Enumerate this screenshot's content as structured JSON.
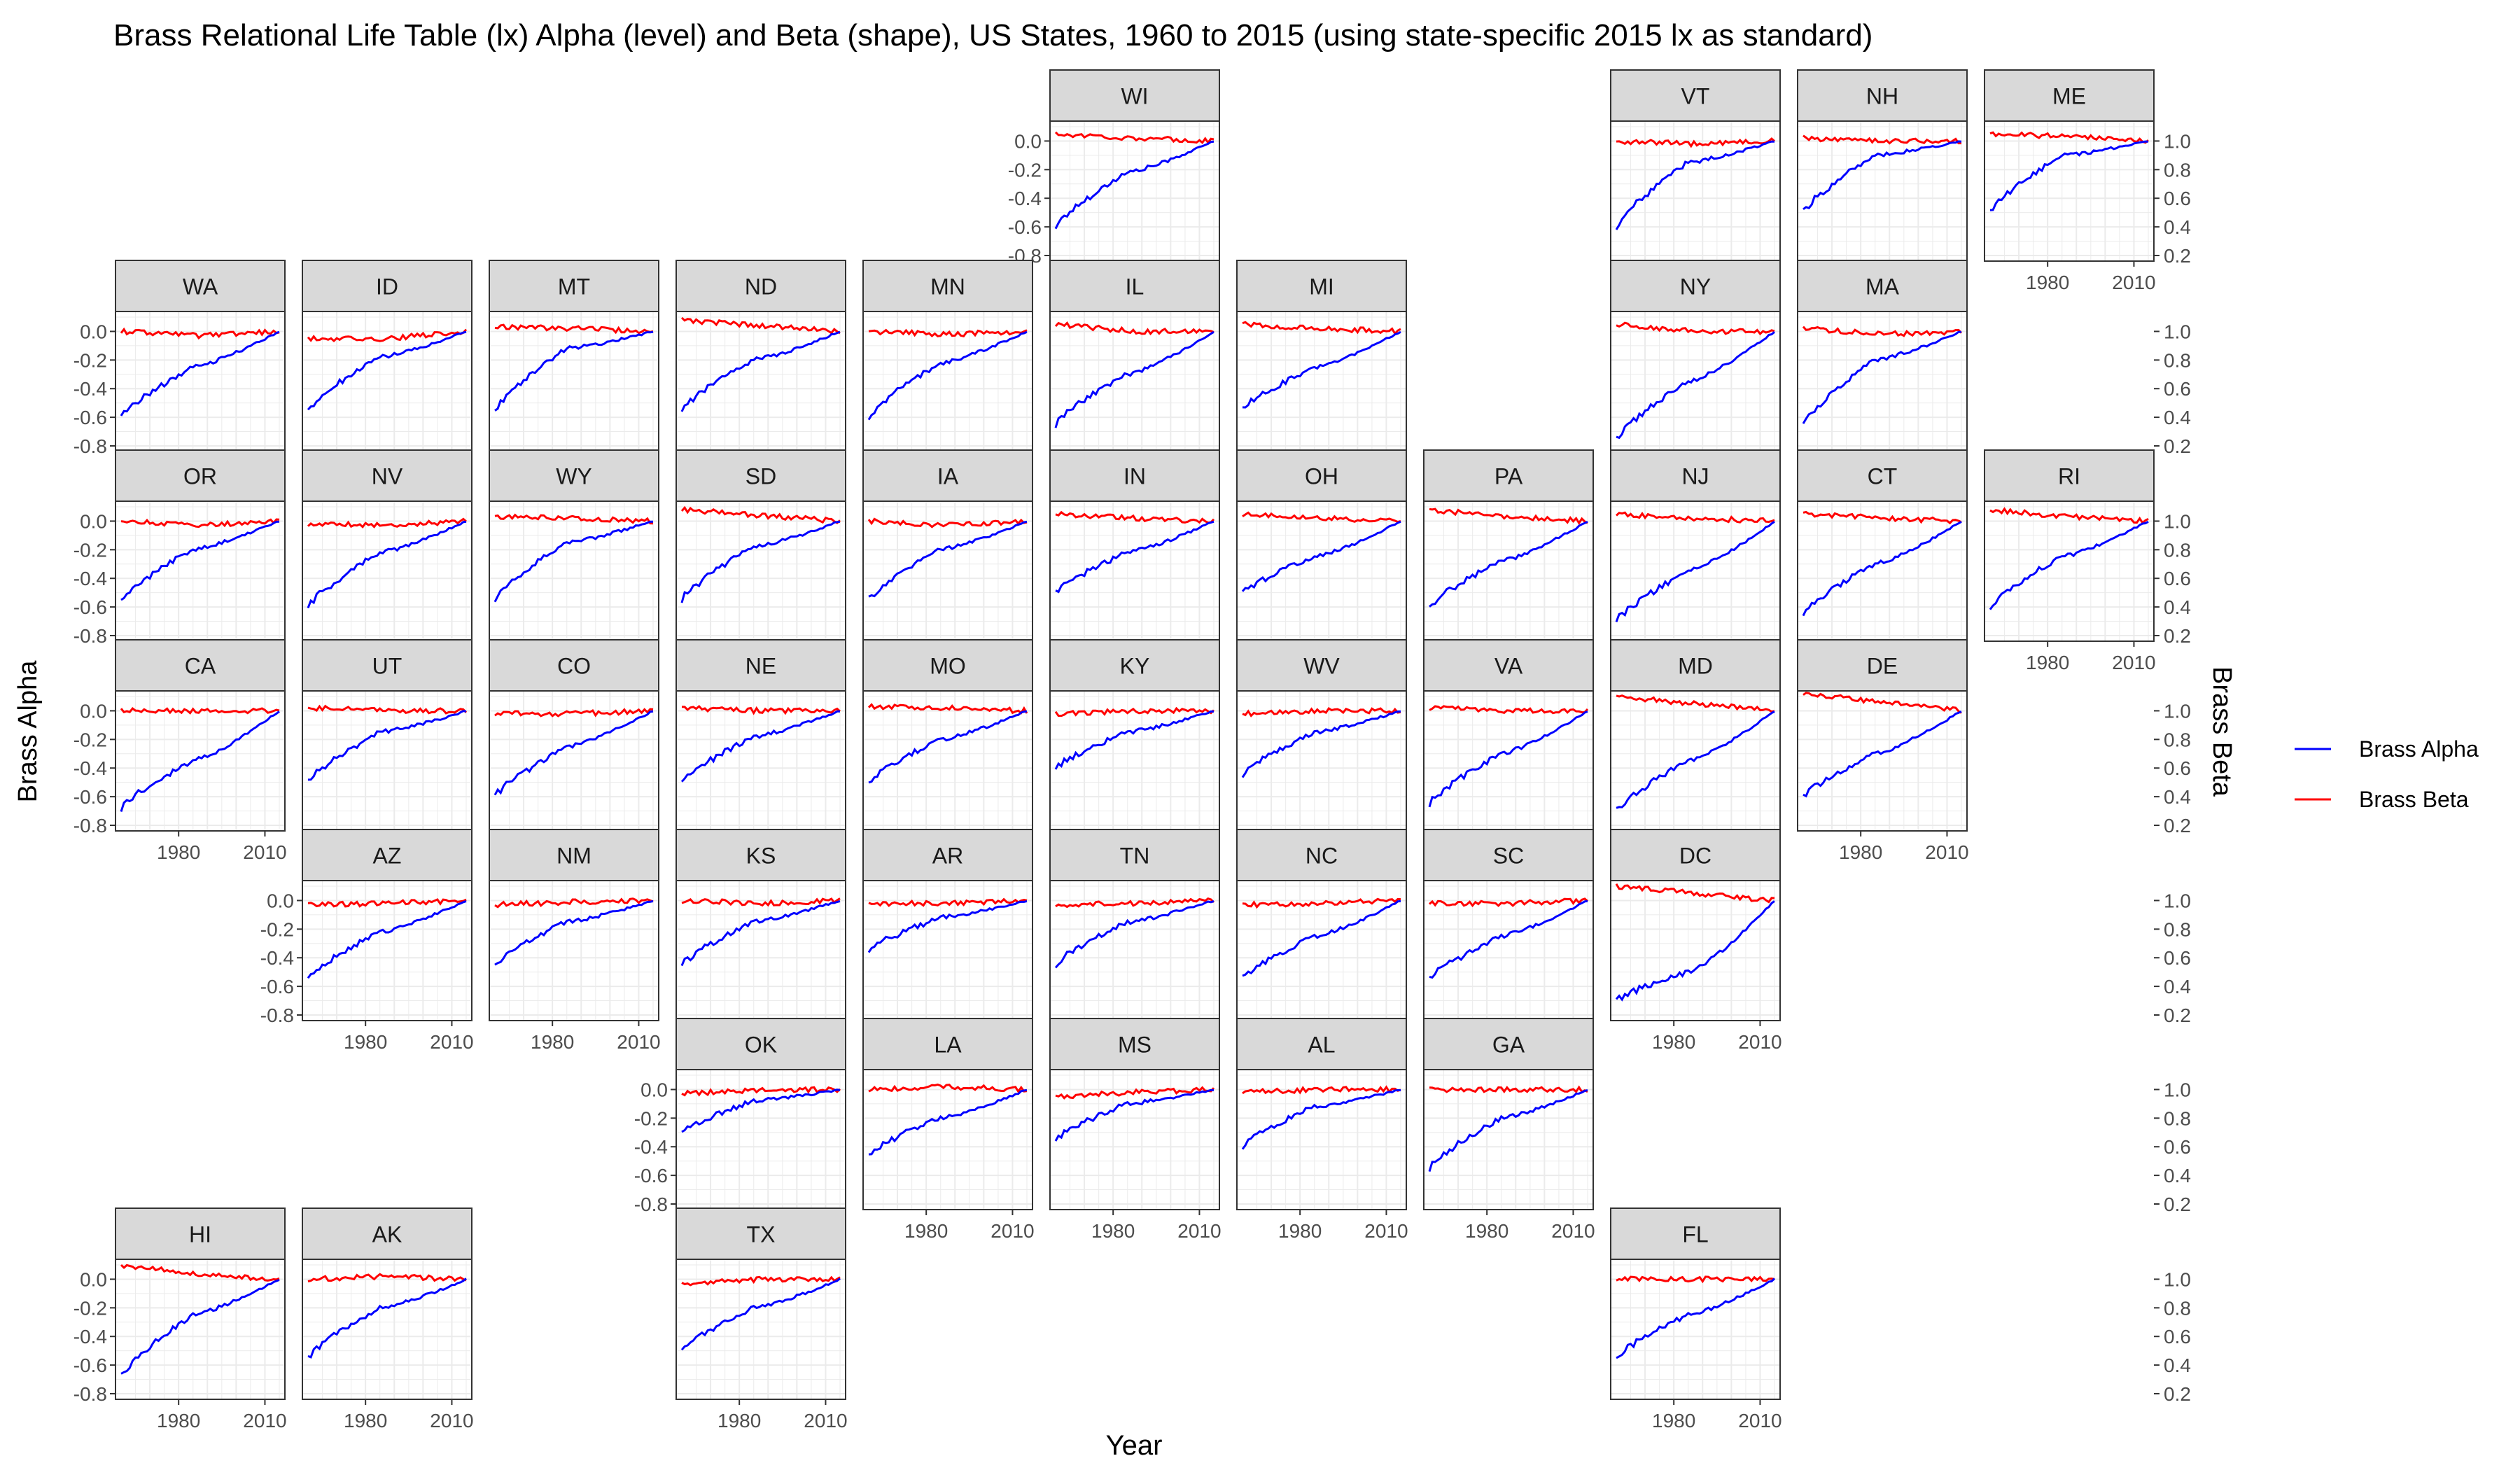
{
  "chart_data": {
    "type": "line",
    "title": "Brass Relational Life Table (lx) Alpha (level) and Beta (shape), US States, 1960 to 2015 (using state-specific 2015 lx as standard)",
    "xlabel": "Year",
    "ylabel_left": "Brass Alpha",
    "ylabel_right": "Brass Beta",
    "x_range": [
      1960,
      2015
    ],
    "x_ticks": [
      1980,
      2010
    ],
    "y_left_ticks": [
      0.0,
      -0.2,
      -0.4,
      -0.6,
      -0.8
    ],
    "y_left_tick_labels": [
      "0.0",
      "-0.2",
      "-0.4",
      "-0.6",
      "-0.8"
    ],
    "y_right_ticks": [
      1.0,
      0.8,
      0.6,
      0.4,
      0.2
    ],
    "y_right_tick_labels": [
      "1.0",
      "0.8",
      "0.6",
      "0.4",
      "0.2"
    ],
    "y_left_range": [
      -0.8,
      0.1
    ],
    "y_right_range": [
      0.2,
      1.1
    ],
    "legend": {
      "position": "right",
      "items": [
        {
          "name": "Brass Alpha",
          "color": "#0000ff"
        },
        {
          "name": "Brass Beta",
          "color": "#ff0000"
        }
      ]
    },
    "colors": {
      "alpha": "#0000ff",
      "beta": "#ff0000",
      "strip": "#d9d9d9",
      "grid": "#ebebeb"
    },
    "panels": [
      {
        "state": "WI",
        "row": 0,
        "col": 5,
        "alpha_start": -0.6,
        "alpha_mid": -0.22,
        "beta_start": 1.05,
        "beta_mid": 1.02
      },
      {
        "state": "VT",
        "row": 0,
        "col": 8,
        "alpha_start": -0.6,
        "alpha_mid": -0.15,
        "beta_start": 1.0,
        "beta_mid": 0.98
      },
      {
        "state": "NH",
        "row": 0,
        "col": 9,
        "alpha_start": -0.5,
        "alpha_mid": -0.1,
        "beta_start": 1.02,
        "beta_mid": 1.0
      },
      {
        "state": "ME",
        "row": 0,
        "col": 10,
        "alpha_start": -0.5,
        "alpha_mid": -0.1,
        "beta_start": 1.05,
        "beta_mid": 1.03
      },
      {
        "state": "WA",
        "row": 1,
        "col": 0,
        "alpha_start": -0.6,
        "alpha_mid": -0.25,
        "beta_start": 1.0,
        "beta_mid": 0.97
      },
      {
        "state": "ID",
        "row": 1,
        "col": 1,
        "alpha_start": -0.55,
        "alpha_mid": -0.18,
        "beta_start": 0.95,
        "beta_mid": 0.95
      },
      {
        "state": "MT",
        "row": 1,
        "col": 2,
        "alpha_start": -0.55,
        "alpha_mid": -0.12,
        "beta_start": 1.03,
        "beta_mid": 1.02
      },
      {
        "state": "ND",
        "row": 1,
        "col": 3,
        "alpha_start": -0.55,
        "alpha_mid": -0.2,
        "beta_start": 1.08,
        "beta_mid": 1.04
      },
      {
        "state": "MN",
        "row": 1,
        "col": 4,
        "alpha_start": -0.6,
        "alpha_mid": -0.22,
        "beta_start": 1.0,
        "beta_mid": 0.98
      },
      {
        "state": "IL",
        "row": 1,
        "col": 5,
        "alpha_start": -0.65,
        "alpha_mid": -0.3,
        "beta_start": 1.05,
        "beta_mid": 1.0
      },
      {
        "state": "MI",
        "row": 1,
        "col": 6,
        "alpha_start": -0.55,
        "alpha_mid": -0.25,
        "beta_start": 1.05,
        "beta_mid": 1.02
      },
      {
        "state": "NY",
        "row": 1,
        "col": 8,
        "alpha_start": -0.75,
        "alpha_mid": -0.35,
        "beta_start": 1.05,
        "beta_mid": 1.0
      },
      {
        "state": "MA",
        "row": 1,
        "col": 9,
        "alpha_start": -0.65,
        "alpha_mid": -0.2,
        "beta_start": 1.02,
        "beta_mid": 0.98
      },
      {
        "state": "OR",
        "row": 2,
        "col": 0,
        "alpha_start": -0.55,
        "alpha_mid": -0.2,
        "beta_start": 1.0,
        "beta_mid": 0.97
      },
      {
        "state": "NV",
        "row": 2,
        "col": 1,
        "alpha_start": -0.6,
        "alpha_mid": -0.22,
        "beta_start": 0.98,
        "beta_mid": 0.97
      },
      {
        "state": "WY",
        "row": 2,
        "col": 2,
        "alpha_start": -0.55,
        "alpha_mid": -0.15,
        "beta_start": 1.03,
        "beta_mid": 1.02
      },
      {
        "state": "SD",
        "row": 2,
        "col": 3,
        "alpha_start": -0.55,
        "alpha_mid": -0.18,
        "beta_start": 1.08,
        "beta_mid": 1.04
      },
      {
        "state": "IA",
        "row": 2,
        "col": 4,
        "alpha_start": -0.55,
        "alpha_mid": -0.2,
        "beta_start": 1.0,
        "beta_mid": 0.97
      },
      {
        "state": "IN",
        "row": 2,
        "col": 5,
        "alpha_start": -0.5,
        "alpha_mid": -0.22,
        "beta_start": 1.05,
        "beta_mid": 1.02
      },
      {
        "state": "OH",
        "row": 2,
        "col": 6,
        "alpha_start": -0.5,
        "alpha_mid": -0.25,
        "beta_start": 1.05,
        "beta_mid": 1.02
      },
      {
        "state": "PA",
        "row": 2,
        "col": 7,
        "alpha_start": -0.6,
        "alpha_mid": -0.28,
        "beta_start": 1.08,
        "beta_mid": 1.03
      },
      {
        "state": "NJ",
        "row": 2,
        "col": 8,
        "alpha_start": -0.7,
        "alpha_mid": -0.35,
        "beta_start": 1.05,
        "beta_mid": 1.02
      },
      {
        "state": "CT",
        "row": 2,
        "col": 9,
        "alpha_start": -0.65,
        "alpha_mid": -0.3,
        "beta_start": 1.05,
        "beta_mid": 1.02
      },
      {
        "state": "RI",
        "row": 2,
        "col": 10,
        "alpha_start": -0.6,
        "alpha_mid": -0.25,
        "beta_start": 1.08,
        "beta_mid": 1.03
      },
      {
        "state": "CA",
        "row": 3,
        "col": 0,
        "alpha_start": -0.68,
        "alpha_mid": -0.35,
        "beta_start": 1.0,
        "beta_mid": 1.0
      },
      {
        "state": "UT",
        "row": 3,
        "col": 1,
        "alpha_start": -0.5,
        "alpha_mid": -0.15,
        "beta_start": 1.02,
        "beta_mid": 1.0
      },
      {
        "state": "CO",
        "row": 3,
        "col": 2,
        "alpha_start": -0.6,
        "alpha_mid": -0.25,
        "beta_start": 0.98,
        "beta_mid": 0.98
      },
      {
        "state": "NE",
        "row": 3,
        "col": 3,
        "alpha_start": -0.5,
        "alpha_mid": -0.18,
        "beta_start": 1.02,
        "beta_mid": 1.0
      },
      {
        "state": "MO",
        "row": 3,
        "col": 4,
        "alpha_start": -0.5,
        "alpha_mid": -0.2,
        "beta_start": 1.03,
        "beta_mid": 1.02
      },
      {
        "state": "KY",
        "row": 3,
        "col": 5,
        "alpha_start": -0.4,
        "alpha_mid": -0.15,
        "beta_start": 0.98,
        "beta_mid": 1.0
      },
      {
        "state": "WV",
        "row": 3,
        "col": 6,
        "alpha_start": -0.45,
        "alpha_mid": -0.15,
        "beta_start": 0.98,
        "beta_mid": 1.0
      },
      {
        "state": "VA",
        "row": 3,
        "col": 7,
        "alpha_start": -0.65,
        "alpha_mid": -0.3,
        "beta_start": 1.02,
        "beta_mid": 1.0
      },
      {
        "state": "MD",
        "row": 3,
        "col": 8,
        "alpha_start": -0.7,
        "alpha_mid": -0.35,
        "beta_start": 1.1,
        "beta_mid": 1.05
      },
      {
        "state": "DE",
        "row": 3,
        "col": 9,
        "alpha_start": -0.6,
        "alpha_mid": -0.3,
        "beta_start": 1.12,
        "beta_mid": 1.06
      },
      {
        "state": "AZ",
        "row": 4,
        "col": 1,
        "alpha_start": -0.55,
        "alpha_mid": -0.22,
        "beta_start": 0.97,
        "beta_mid": 0.98
      },
      {
        "state": "NM",
        "row": 4,
        "col": 2,
        "alpha_start": -0.45,
        "alpha_mid": -0.15,
        "beta_start": 0.97,
        "beta_mid": 0.99
      },
      {
        "state": "KS",
        "row": 4,
        "col": 3,
        "alpha_start": -0.45,
        "alpha_mid": -0.15,
        "beta_start": 1.0,
        "beta_mid": 0.98
      },
      {
        "state": "AR",
        "row": 4,
        "col": 4,
        "alpha_start": -0.35,
        "alpha_mid": -0.12,
        "beta_start": 0.98,
        "beta_mid": 0.98
      },
      {
        "state": "TN",
        "row": 4,
        "col": 5,
        "alpha_start": -0.45,
        "alpha_mid": -0.15,
        "beta_start": 0.97,
        "beta_mid": 0.98
      },
      {
        "state": "NC",
        "row": 4,
        "col": 6,
        "alpha_start": -0.55,
        "alpha_mid": -0.25,
        "beta_start": 0.97,
        "beta_mid": 0.98
      },
      {
        "state": "SC",
        "row": 4,
        "col": 7,
        "alpha_start": -0.55,
        "alpha_mid": -0.25,
        "beta_start": 0.98,
        "beta_mid": 0.98
      },
      {
        "state": "DC",
        "row": 4,
        "col": 8,
        "alpha_start": -0.7,
        "alpha_mid": -0.5,
        "beta_start": 1.1,
        "beta_mid": 1.05
      },
      {
        "state": "OK",
        "row": 5,
        "col": 3,
        "alpha_start": -0.3,
        "alpha_mid": -0.08,
        "beta_start": 0.97,
        "beta_mid": 1.0
      },
      {
        "state": "LA",
        "row": 5,
        "col": 4,
        "alpha_start": -0.45,
        "alpha_mid": -0.2,
        "beta_start": 1.0,
        "beta_mid": 1.02
      },
      {
        "state": "MS",
        "row": 5,
        "col": 5,
        "alpha_start": -0.35,
        "alpha_mid": -0.1,
        "beta_start": 0.95,
        "beta_mid": 0.98
      },
      {
        "state": "AL",
        "row": 5,
        "col": 6,
        "alpha_start": -0.4,
        "alpha_mid": -0.12,
        "beta_start": 0.98,
        "beta_mid": 1.0
      },
      {
        "state": "GA",
        "row": 5,
        "col": 7,
        "alpha_start": -0.55,
        "alpha_mid": -0.2,
        "beta_start": 1.0,
        "beta_mid": 1.0
      },
      {
        "state": "HI",
        "row": 6,
        "col": 0,
        "alpha_start": -0.68,
        "alpha_mid": -0.25,
        "beta_start": 1.1,
        "beta_mid": 1.03
      },
      {
        "state": "AK",
        "row": 6,
        "col": 1,
        "alpha_start": -0.55,
        "alpha_mid": -0.2,
        "beta_start": 1.0,
        "beta_mid": 1.02
      },
      {
        "state": "TX",
        "row": 6,
        "col": 3,
        "alpha_start": -0.5,
        "alpha_mid": -0.2,
        "beta_start": 0.97,
        "beta_mid": 1.0
      },
      {
        "state": "FL",
        "row": 6,
        "col": 8,
        "alpha_start": -0.55,
        "alpha_mid": -0.25,
        "beta_start": 1.0,
        "beta_mid": 1.0
      }
    ]
  }
}
